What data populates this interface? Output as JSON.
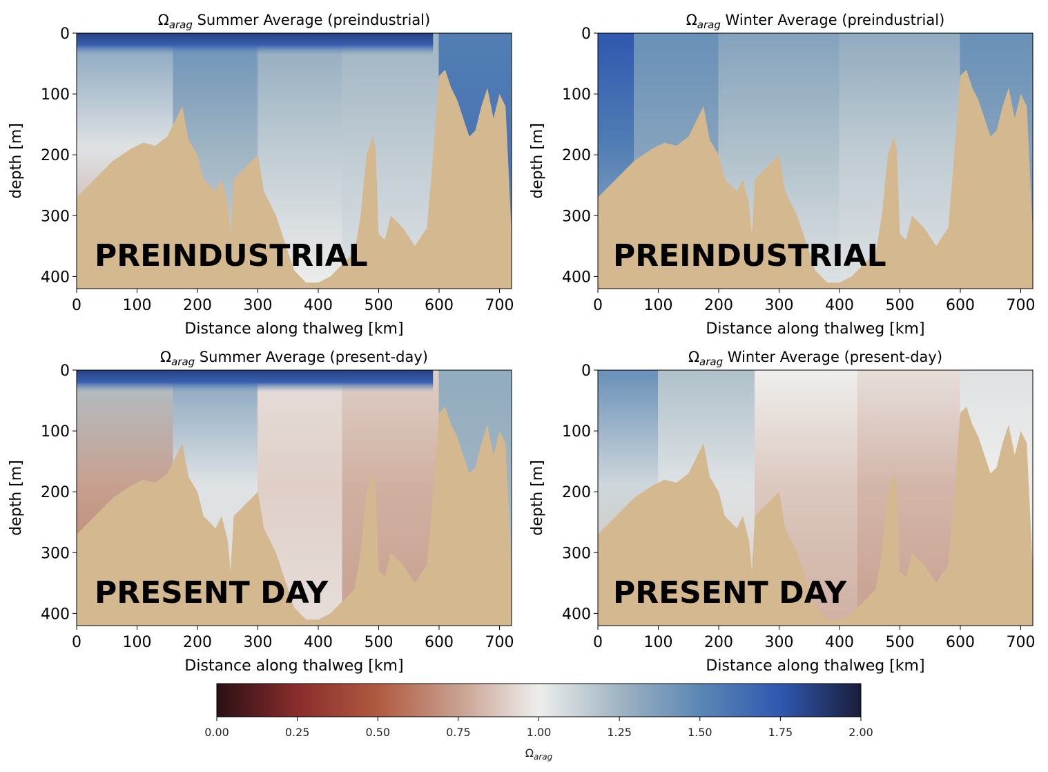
{
  "chart_data": [
    {
      "type": "heatmap",
      "id": "summer-pre",
      "title_symbol": "Ω",
      "title_sub": "arag",
      "title_rest": " Summer Average (preindustrial)",
      "overlay_label": "PREINDUSTRIAL",
      "xlabel": "Distance along thalweg [km]",
      "ylabel": "depth [m]",
      "xlim": [
        0,
        720
      ],
      "ylim": [
        420,
        0
      ],
      "xticks": [
        0,
        100,
        200,
        300,
        400,
        500,
        600,
        700
      ],
      "yticks": [
        0,
        100,
        200,
        300,
        400
      ],
      "surface_layer": {
        "omega": 1.85,
        "thickness_m": 15,
        "end_km": 590
      },
      "field_segments": [
        {
          "x0": 0,
          "x1": 160,
          "top": 1.35,
          "mid": 1.05,
          "bottom": 0.7
        },
        {
          "x0": 160,
          "x1": 300,
          "top": 1.45,
          "mid": 1.25,
          "bottom": 1.1
        },
        {
          "x0": 300,
          "x1": 440,
          "top": 1.3,
          "mid": 1.15,
          "bottom": 1.0
        },
        {
          "x0": 440,
          "x1": 600,
          "top": 1.25,
          "mid": 1.15,
          "bottom": 1.05
        },
        {
          "x0": 600,
          "x1": 720,
          "top": 1.55,
          "mid": 1.6,
          "bottom": 1.55
        }
      ]
    },
    {
      "type": "heatmap",
      "id": "winter-pre",
      "title_symbol": "Ω",
      "title_sub": "arag",
      "title_rest": " Winter Average (preindustrial)",
      "overlay_label": "PREINDUSTRIAL",
      "xlabel": "Distance along thalweg [km]",
      "ylabel": "depth [m]",
      "xlim": [
        0,
        720
      ],
      "ylim": [
        420,
        0
      ],
      "xticks": [
        0,
        100,
        200,
        300,
        400,
        500,
        600,
        700
      ],
      "yticks": [
        0,
        100,
        200,
        300,
        400
      ],
      "surface_layer": null,
      "field_segments": [
        {
          "x0": 0,
          "x1": 60,
          "top": 1.75,
          "mid": 1.55,
          "bottom": 1.2
        },
        {
          "x0": 60,
          "x1": 200,
          "top": 1.45,
          "mid": 1.35,
          "bottom": 1.2
        },
        {
          "x0": 200,
          "x1": 400,
          "top": 1.35,
          "mid": 1.2,
          "bottom": 1.05
        },
        {
          "x0": 400,
          "x1": 600,
          "top": 1.3,
          "mid": 1.15,
          "bottom": 1.05
        },
        {
          "x0": 600,
          "x1": 720,
          "top": 1.45,
          "mid": 1.35,
          "bottom": 1.4
        }
      ]
    },
    {
      "type": "heatmap",
      "id": "summer-present",
      "title_symbol": "Ω",
      "title_sub": "arag",
      "title_rest": " Summer Average (present-day)",
      "overlay_label": "PRESENT DAY",
      "xlabel": "Distance along thalweg [km]",
      "ylabel": "depth [m]",
      "xlim": [
        0,
        720
      ],
      "ylim": [
        420,
        0
      ],
      "xticks": [
        0,
        100,
        200,
        300,
        400,
        500,
        600,
        700
      ],
      "yticks": [
        0,
        100,
        200,
        300,
        400
      ],
      "surface_layer": {
        "omega": 1.85,
        "thickness_m": 15,
        "end_km": 590
      },
      "field_segments": [
        {
          "x0": 0,
          "x1": 160,
          "top": 1.2,
          "mid": 0.75,
          "bottom": 0.6
        },
        {
          "x0": 160,
          "x1": 300,
          "top": 1.35,
          "mid": 1.05,
          "bottom": 0.95
        },
        {
          "x0": 300,
          "x1": 440,
          "top": 0.95,
          "mid": 0.9,
          "bottom": 0.95
        },
        {
          "x0": 440,
          "x1": 600,
          "top": 0.9,
          "mid": 0.8,
          "bottom": 0.75
        },
        {
          "x0": 600,
          "x1": 720,
          "top": 1.3,
          "mid": 1.25,
          "bottom": 1.2
        }
      ]
    },
    {
      "type": "heatmap",
      "id": "winter-present",
      "title_symbol": "Ω",
      "title_sub": "arag",
      "title_rest": " Winter Average (present-day)",
      "overlay_label": "PRESENT DAY",
      "xlabel": "Distance along thalweg [km]",
      "ylabel": "depth [m]",
      "xlim": [
        0,
        720
      ],
      "ylim": [
        420,
        0
      ],
      "xticks": [
        0,
        100,
        200,
        300,
        400,
        500,
        600,
        700
      ],
      "yticks": [
        0,
        100,
        200,
        300,
        400
      ],
      "surface_layer": null,
      "field_segments": [
        {
          "x0": 0,
          "x1": 100,
          "top": 1.45,
          "mid": 1.1,
          "bottom": 0.85
        },
        {
          "x0": 100,
          "x1": 260,
          "top": 1.2,
          "mid": 1.05,
          "bottom": 0.9
        },
        {
          "x0": 260,
          "x1": 430,
          "top": 1.0,
          "mid": 0.88,
          "bottom": 0.8
        },
        {
          "x0": 430,
          "x1": 600,
          "top": 0.95,
          "mid": 0.82,
          "bottom": 0.75
        },
        {
          "x0": 600,
          "x1": 720,
          "top": 1.05,
          "mid": 1.0,
          "bottom": 1.0
        }
      ]
    }
  ],
  "seafloor": {
    "color": "#d4b88f",
    "profile_km": [
      0,
      10,
      30,
      60,
      90,
      110,
      130,
      150,
      165,
      175,
      185,
      200,
      210,
      220,
      230,
      240,
      250,
      255,
      260,
      270,
      280,
      290,
      300,
      310,
      320,
      330,
      340,
      350,
      360,
      380,
      400,
      420,
      440,
      460,
      470,
      480,
      490,
      495,
      500,
      510,
      520,
      540,
      560,
      580,
      590,
      600,
      610,
      620,
      630,
      640,
      650,
      660,
      670,
      680,
      690,
      700,
      710,
      720
    ],
    "profile_depth_m": [
      270,
      260,
      240,
      210,
      190,
      180,
      185,
      170,
      140,
      120,
      175,
      200,
      240,
      250,
      260,
      240,
      280,
      330,
      240,
      230,
      220,
      210,
      200,
      260,
      280,
      300,
      330,
      360,
      390,
      410,
      410,
      400,
      380,
      360,
      300,
      200,
      170,
      190,
      330,
      340,
      300,
      320,
      350,
      320,
      200,
      70,
      60,
      90,
      110,
      140,
      170,
      160,
      120,
      90,
      140,
      100,
      120,
      330
    ]
  },
  "colorbar": {
    "label_symbol": "Ω",
    "label_sub": "arag",
    "min": 0.0,
    "max": 2.0,
    "ticks": [
      "0.00",
      "0.25",
      "0.50",
      "0.75",
      "1.00",
      "1.25",
      "1.50",
      "1.75",
      "2.00"
    ],
    "colormap_stops": [
      {
        "v": 0.0,
        "color": "#2a1015"
      },
      {
        "v": 0.25,
        "color": "#8a2c2c"
      },
      {
        "v": 0.5,
        "color": "#b05a40"
      },
      {
        "v": 0.75,
        "color": "#c8a090"
      },
      {
        "v": 1.0,
        "color": "#eeeeec"
      },
      {
        "v": 1.25,
        "color": "#9fb4c2"
      },
      {
        "v": 1.5,
        "color": "#5b87b5"
      },
      {
        "v": 1.75,
        "color": "#2f58b0"
      },
      {
        "v": 2.0,
        "color": "#1a1d3a"
      }
    ]
  }
}
